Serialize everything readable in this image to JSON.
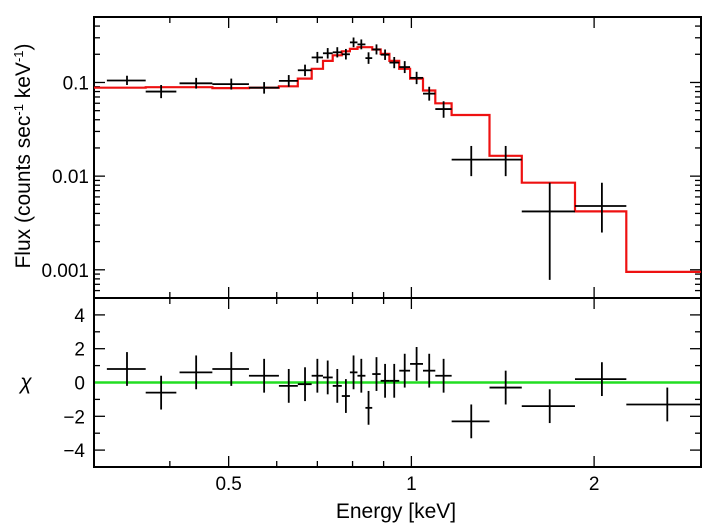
{
  "chart_data": {
    "type": "scatter",
    "xlabel": "Energy [keV]",
    "x_scale": "log",
    "xlim": [
      0.3,
      3.0
    ],
    "x_ticks": [
      {
        "value": 0.5,
        "label": "0.5"
      },
      {
        "value": 1.0,
        "label": "1"
      },
      {
        "value": 2.0,
        "label": "2"
      }
    ],
    "panels": [
      {
        "name": "spectrum",
        "ylabel_pre": "Flux (counts sec",
        "ylabel_sup1": "-1",
        "ylabel_mid": " keV",
        "ylabel_sup2": "-1",
        "ylabel_post": ")",
        "y_scale": "log",
        "ylim": [
          0.0005,
          0.5
        ],
        "y_ticks": [
          {
            "value": 0.1,
            "label": "0.1"
          },
          {
            "value": 0.01,
            "label": "0.01"
          },
          {
            "value": 0.001,
            "label": "0.001"
          }
        ],
        "series": [
          {
            "name": "data",
            "kind": "error-cross",
            "color": "#000000",
            "points": [
              {
                "x": 0.34,
                "xlo": 0.315,
                "xhi": 0.365,
                "y": 0.105,
                "ylo": 0.094,
                "yhi": 0.118
              },
              {
                "x": 0.387,
                "xlo": 0.365,
                "xhi": 0.41,
                "y": 0.08,
                "ylo": 0.068,
                "yhi": 0.094
              },
              {
                "x": 0.442,
                "xlo": 0.415,
                "xhi": 0.47,
                "y": 0.098,
                "ylo": 0.086,
                "yhi": 0.112
              },
              {
                "x": 0.505,
                "xlo": 0.47,
                "xhi": 0.54,
                "y": 0.096,
                "ylo": 0.084,
                "yhi": 0.11
              },
              {
                "x": 0.572,
                "xlo": 0.54,
                "xhi": 0.605,
                "y": 0.088,
                "ylo": 0.076,
                "yhi": 0.101
              },
              {
                "x": 0.628,
                "xlo": 0.605,
                "xhi": 0.65,
                "y": 0.104,
                "ylo": 0.09,
                "yhi": 0.12
              },
              {
                "x": 0.668,
                "xlo": 0.65,
                "xhi": 0.685,
                "y": 0.135,
                "ylo": 0.117,
                "yhi": 0.155
              },
              {
                "x": 0.7,
                "xlo": 0.685,
                "xhi": 0.715,
                "y": 0.185,
                "ylo": 0.162,
                "yhi": 0.212
              },
              {
                "x": 0.728,
                "xlo": 0.715,
                "xhi": 0.742,
                "y": 0.205,
                "ylo": 0.18,
                "yhi": 0.233
              },
              {
                "x": 0.755,
                "xlo": 0.742,
                "xhi": 0.768,
                "y": 0.21,
                "ylo": 0.185,
                "yhi": 0.238
              },
              {
                "x": 0.78,
                "xlo": 0.768,
                "xhi": 0.792,
                "y": 0.2,
                "ylo": 0.176,
                "yhi": 0.228
              },
              {
                "x": 0.803,
                "xlo": 0.792,
                "xhi": 0.815,
                "y": 0.268,
                "ylo": 0.238,
                "yhi": 0.302
              },
              {
                "x": 0.827,
                "xlo": 0.815,
                "xhi": 0.84,
                "y": 0.255,
                "ylo": 0.226,
                "yhi": 0.288
              },
              {
                "x": 0.85,
                "xlo": 0.84,
                "xhi": 0.862,
                "y": 0.182,
                "ylo": 0.158,
                "yhi": 0.21
              },
              {
                "x": 0.876,
                "xlo": 0.862,
                "xhi": 0.89,
                "y": 0.225,
                "ylo": 0.199,
                "yhi": 0.255
              },
              {
                "x": 0.905,
                "xlo": 0.89,
                "xhi": 0.92,
                "y": 0.198,
                "ylo": 0.174,
                "yhi": 0.225
              },
              {
                "x": 0.937,
                "xlo": 0.92,
                "xhi": 0.955,
                "y": 0.163,
                "ylo": 0.142,
                "yhi": 0.187
              },
              {
                "x": 0.975,
                "xlo": 0.955,
                "xhi": 0.995,
                "y": 0.146,
                "ylo": 0.126,
                "yhi": 0.169
              },
              {
                "x": 1.02,
                "xlo": 0.995,
                "xhi": 1.045,
                "y": 0.112,
                "ylo": 0.096,
                "yhi": 0.13
              },
              {
                "x": 1.07,
                "xlo": 1.045,
                "xhi": 1.095,
                "y": 0.076,
                "ylo": 0.064,
                "yhi": 0.09
              },
              {
                "x": 1.13,
                "xlo": 1.095,
                "xhi": 1.165,
                "y": 0.052,
                "ylo": 0.042,
                "yhi": 0.063
              },
              {
                "x": 1.255,
                "xlo": 1.165,
                "xhi": 1.345,
                "y": 0.015,
                "ylo": 0.01,
                "yhi": 0.021
              },
              {
                "x": 1.43,
                "xlo": 1.345,
                "xhi": 1.52,
                "y": 0.015,
                "ylo": 0.01,
                "yhi": 0.021
              },
              {
                "x": 1.69,
                "xlo": 1.52,
                "xhi": 1.86,
                "y": 0.0042,
                "ylo": 0.00078,
                "yhi": 0.0085
              },
              {
                "x": 2.06,
                "xlo": 1.86,
                "xhi": 2.26,
                "y": 0.0048,
                "ylo": 0.0025,
                "yhi": 0.0085
              }
            ]
          },
          {
            "name": "model",
            "kind": "step",
            "color": "#ee1111",
            "edges": [
              0.3,
              0.365,
              0.415,
              0.47,
              0.54,
              0.605,
              0.65,
              0.685,
              0.715,
              0.742,
              0.768,
              0.792,
              0.815,
              0.84,
              0.862,
              0.89,
              0.92,
              0.955,
              0.995,
              1.045,
              1.095,
              1.165,
              1.345,
              1.52,
              1.86,
              2.26,
              3.0
            ],
            "values": [
              0.088,
              0.089,
              0.089,
              0.087,
              0.088,
              0.091,
              0.11,
              0.14,
              0.17,
              0.195,
              0.215,
              0.228,
              0.238,
              0.238,
              0.225,
              0.202,
              0.17,
              0.14,
              0.11,
              0.082,
              0.06,
              0.045,
              0.0165,
              0.0085,
              0.0042,
              0.00095
            ]
          }
        ]
      },
      {
        "name": "residuals",
        "ylabel": "χ",
        "y_scale": "linear",
        "ylim": [
          -5,
          5
        ],
        "y_ticks": [
          {
            "value": 4,
            "label": "4"
          },
          {
            "value": 2,
            "label": "2"
          },
          {
            "value": 0,
            "label": "0"
          },
          {
            "value": -2,
            "label": "−2"
          },
          {
            "value": -4,
            "label": "−4"
          }
        ],
        "zero_line_color": "#22dd22",
        "series": [
          {
            "name": "residual",
            "kind": "error-cross",
            "color": "#000000",
            "points": [
              {
                "x": 0.34,
                "xlo": 0.315,
                "xhi": 0.365,
                "y": 0.8,
                "ylo": -0.2,
                "yhi": 1.8
              },
              {
                "x": 0.387,
                "xlo": 0.365,
                "xhi": 0.41,
                "y": -0.6,
                "ylo": -1.6,
                "yhi": 0.4
              },
              {
                "x": 0.442,
                "xlo": 0.415,
                "xhi": 0.47,
                "y": 0.6,
                "ylo": -0.4,
                "yhi": 1.6
              },
              {
                "x": 0.505,
                "xlo": 0.47,
                "xhi": 0.54,
                "y": 0.8,
                "ylo": -0.2,
                "yhi": 1.8
              },
              {
                "x": 0.572,
                "xlo": 0.54,
                "xhi": 0.605,
                "y": 0.4,
                "ylo": -0.6,
                "yhi": 1.4
              },
              {
                "x": 0.628,
                "xlo": 0.605,
                "xhi": 0.65,
                "y": -0.2,
                "ylo": -1.2,
                "yhi": 0.8
              },
              {
                "x": 0.668,
                "xlo": 0.65,
                "xhi": 0.685,
                "y": -0.1,
                "ylo": -1.1,
                "yhi": 0.9
              },
              {
                "x": 0.7,
                "xlo": 0.685,
                "xhi": 0.715,
                "y": 0.4,
                "ylo": -0.6,
                "yhi": 1.4
              },
              {
                "x": 0.728,
                "xlo": 0.715,
                "xhi": 0.742,
                "y": 0.3,
                "ylo": -0.7,
                "yhi": 1.3
              },
              {
                "x": 0.755,
                "xlo": 0.742,
                "xhi": 0.768,
                "y": -0.2,
                "ylo": -1.2,
                "yhi": 0.8
              },
              {
                "x": 0.78,
                "xlo": 0.768,
                "xhi": 0.792,
                "y": -0.8,
                "ylo": -1.8,
                "yhi": 0.2
              },
              {
                "x": 0.803,
                "xlo": 0.792,
                "xhi": 0.815,
                "y": 0.6,
                "ylo": -0.4,
                "yhi": 1.6
              },
              {
                "x": 0.827,
                "xlo": 0.815,
                "xhi": 0.84,
                "y": 0.4,
                "ylo": -0.6,
                "yhi": 1.4
              },
              {
                "x": 0.85,
                "xlo": 0.84,
                "xhi": 0.862,
                "y": -1.5,
                "ylo": -2.5,
                "yhi": -0.5
              },
              {
                "x": 0.876,
                "xlo": 0.862,
                "xhi": 0.89,
                "y": 0.5,
                "ylo": -0.5,
                "yhi": 1.5
              },
              {
                "x": 0.905,
                "xlo": 0.89,
                "xhi": 0.92,
                "y": 0.1,
                "ylo": -0.9,
                "yhi": 1.1
              },
              {
                "x": 0.937,
                "xlo": 0.92,
                "xhi": 0.955,
                "y": 0.1,
                "ylo": -0.9,
                "yhi": 1.1
              },
              {
                "x": 0.975,
                "xlo": 0.955,
                "xhi": 0.995,
                "y": 0.7,
                "ylo": -0.3,
                "yhi": 1.7
              },
              {
                "x": 1.02,
                "xlo": 0.995,
                "xhi": 1.045,
                "y": 1.1,
                "ylo": 0.1,
                "yhi": 2.1
              },
              {
                "x": 1.07,
                "xlo": 1.045,
                "xhi": 1.095,
                "y": 0.7,
                "ylo": -0.3,
                "yhi": 1.7
              },
              {
                "x": 1.13,
                "xlo": 1.095,
                "xhi": 1.165,
                "y": 0.4,
                "ylo": -0.6,
                "yhi": 1.4
              },
              {
                "x": 1.255,
                "xlo": 1.165,
                "xhi": 1.345,
                "y": -2.3,
                "ylo": -3.3,
                "yhi": -1.3
              },
              {
                "x": 1.43,
                "xlo": 1.345,
                "xhi": 1.52,
                "y": -0.3,
                "ylo": -1.3,
                "yhi": 0.7
              },
              {
                "x": 1.69,
                "xlo": 1.52,
                "xhi": 1.86,
                "y": -1.4,
                "ylo": -2.4,
                "yhi": -0.4
              },
              {
                "x": 2.06,
                "xlo": 1.86,
                "xhi": 2.26,
                "y": 0.2,
                "ylo": -0.8,
                "yhi": 1.2
              },
              {
                "x": 2.64,
                "xlo": 2.26,
                "xhi": 3.0,
                "y": -1.3,
                "ylo": -2.3,
                "yhi": -0.3
              }
            ]
          }
        ]
      }
    ]
  }
}
